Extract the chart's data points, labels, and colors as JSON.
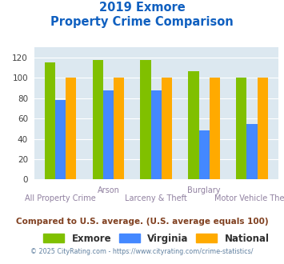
{
  "title_line1": "2019 Exmore",
  "title_line2": "Property Crime Comparison",
  "categories": [
    "All Property Crime",
    "Arson",
    "Larceny & Theft",
    "Burglary",
    "Motor Vehicle Theft"
  ],
  "series": {
    "Exmore": [
      115,
      118,
      118,
      107,
      100
    ],
    "Virginia": [
      78,
      88,
      88,
      48,
      55
    ],
    "National": [
      100,
      100,
      100,
      100,
      100
    ]
  },
  "colors": {
    "Exmore": "#80c000",
    "Virginia": "#4488ff",
    "National": "#ffaa00"
  },
  "ylim": [
    0,
    130
  ],
  "yticks": [
    0,
    20,
    40,
    60,
    80,
    100,
    120
  ],
  "title_color": "#1060c0",
  "bg_color": "#dce8f0",
  "xlabel_color": "#9080a0",
  "legend_label_color": "#303030",
  "footer_text": "Compared to U.S. average. (U.S. average equals 100)",
  "footer_color": "#804020",
  "credit_text": "© 2025 CityRating.com - https://www.cityrating.com/crime-statistics/",
  "credit_color": "#6080a0",
  "bar_width": 0.22
}
